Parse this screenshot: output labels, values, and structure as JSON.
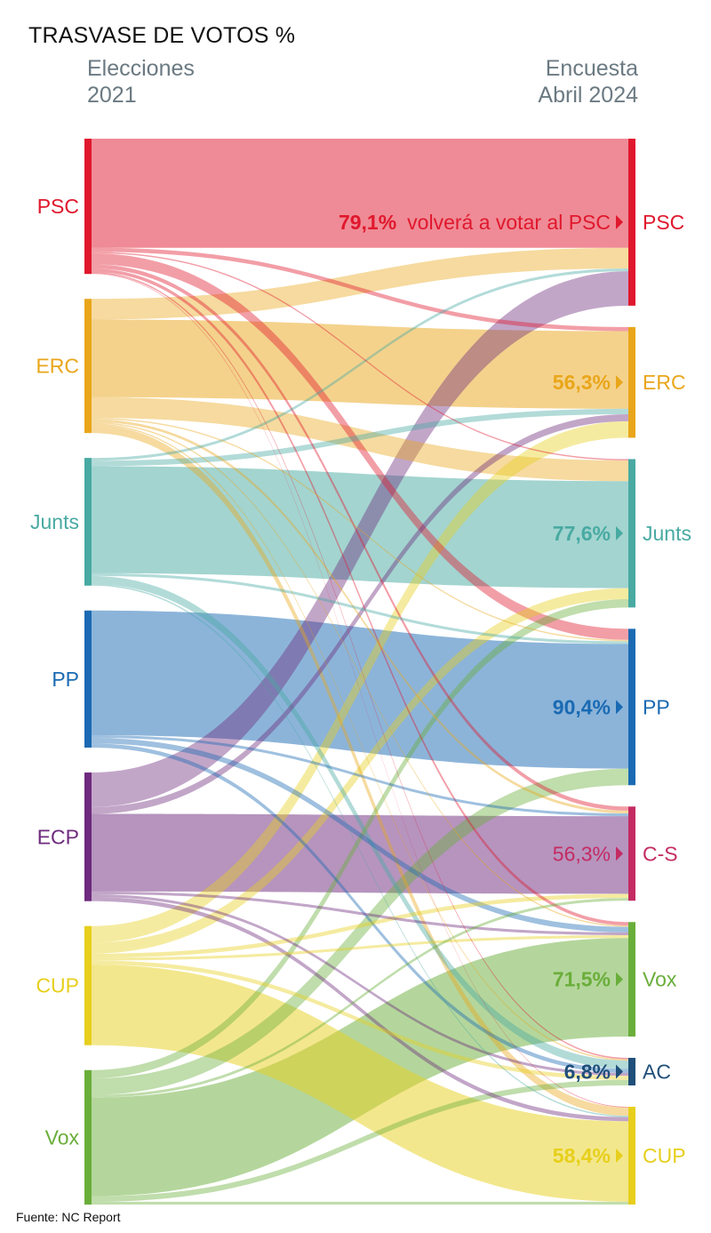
{
  "header": {
    "title": "TRASVASE DE VOTOS %",
    "left_subtitle_line1": "Elecciones",
    "left_subtitle_line2": "2021",
    "right_subtitle_line1": "Encuesta",
    "right_subtitle_line2": "Abril 2024"
  },
  "footer": {
    "source": "Fuente: NC Report"
  },
  "chart_data": {
    "type": "sankey",
    "title": "TRASVASE DE VOTOS %",
    "left_label": "Elecciones 2021",
    "right_label": "Encuesta Abril 2024",
    "left_nodes": [
      {
        "id": "PSC",
        "label": "PSC",
        "color": "#e0182d"
      },
      {
        "id": "ERC",
        "label": "ERC",
        "color": "#e9a61a"
      },
      {
        "id": "Junts",
        "label": "Junts",
        "color": "#48aaa2"
      },
      {
        "id": "PP",
        "label": "PP",
        "color": "#1a6ab3"
      },
      {
        "id": "ECP",
        "label": "ECP",
        "color": "#6e2a7d"
      },
      {
        "id": "CUP",
        "label": "CUP",
        "color": "#e7cf1c"
      },
      {
        "id": "Vox",
        "label": "Vox",
        "color": "#6aae3a"
      }
    ],
    "right_nodes": [
      {
        "id": "PSC",
        "label": "PSC",
        "color": "#e0182d",
        "retention_label": "79,1%",
        "retention_note": "volverá a votar al PSC"
      },
      {
        "id": "ERC",
        "label": "ERC",
        "color": "#e9a61a",
        "retention_label": "56,3%"
      },
      {
        "id": "Junts",
        "label": "Junts",
        "color": "#48aaa2",
        "retention_label": "77,6%"
      },
      {
        "id": "PP",
        "label": "PP",
        "color": "#1a6ab3",
        "retention_label": "90,4%"
      },
      {
        "id": "C-S",
        "label": "C-S",
        "color": "#c42b62",
        "retention_label": "56,3%"
      },
      {
        "id": "Vox",
        "label": "Vox",
        "color": "#6aae3a",
        "retention_label": "71,5%"
      },
      {
        "id": "AC",
        "label": "AC",
        "color": "#1f4f7a",
        "retention_label": "6,8%"
      },
      {
        "id": "CUP",
        "label": "CUP",
        "color": "#e7cf1c",
        "retention_label": "58,4%"
      }
    ],
    "flows": [
      {
        "from": "PSC",
        "to": "PSC",
        "value": 79.1
      },
      {
        "from": "PSC",
        "to": "ERC",
        "value": 3.0
      },
      {
        "from": "PSC",
        "to": "Junts",
        "value": 1.0
      },
      {
        "from": "PSC",
        "to": "PP",
        "value": 8.0
      },
      {
        "from": "PSC",
        "to": "C-S",
        "value": 3.0
      },
      {
        "from": "PSC",
        "to": "Vox",
        "value": 2.5
      },
      {
        "from": "PSC",
        "to": "AC",
        "value": 1.0
      },
      {
        "from": "PSC",
        "to": "CUP",
        "value": 0.5
      },
      {
        "from": "ERC",
        "to": "PSC",
        "value": 15.0
      },
      {
        "from": "ERC",
        "to": "ERC",
        "value": 56.3
      },
      {
        "from": "ERC",
        "to": "Junts",
        "value": 15.0
      },
      {
        "from": "ERC",
        "to": "PP",
        "value": 1.0
      },
      {
        "from": "ERC",
        "to": "C-S",
        "value": 2.0
      },
      {
        "from": "ERC",
        "to": "Vox",
        "value": 1.0
      },
      {
        "from": "ERC",
        "to": "AC",
        "value": 1.0
      },
      {
        "from": "ERC",
        "to": "CUP",
        "value": 6.0
      },
      {
        "from": "Junts",
        "to": "PSC",
        "value": 2.0
      },
      {
        "from": "Junts",
        "to": "ERC",
        "value": 4.0
      },
      {
        "from": "Junts",
        "to": "Junts",
        "value": 77.6
      },
      {
        "from": "Junts",
        "to": "PP",
        "value": 2.0
      },
      {
        "from": "Junts",
        "to": "AC",
        "value": 6.0
      },
      {
        "from": "Junts",
        "to": "CUP",
        "value": 1.0
      },
      {
        "from": "PP",
        "to": "PP",
        "value": 90.4
      },
      {
        "from": "PP",
        "to": "C-S",
        "value": 2.0
      },
      {
        "from": "PP",
        "to": "Vox",
        "value": 4.0
      },
      {
        "from": "PP",
        "to": "AC",
        "value": 3.0
      },
      {
        "from": "ECP",
        "to": "PSC",
        "value": 25.0
      },
      {
        "from": "ECP",
        "to": "ERC",
        "value": 5.0
      },
      {
        "from": "ECP",
        "to": "C-S",
        "value": 56.3
      },
      {
        "from": "ECP",
        "to": "Vox",
        "value": 2.0
      },
      {
        "from": "ECP",
        "to": "AC",
        "value": 2.0
      },
      {
        "from": "ECP",
        "to": "CUP",
        "value": 3.0
      },
      {
        "from": "CUP",
        "to": "ERC",
        "value": 12.0
      },
      {
        "from": "CUP",
        "to": "Junts",
        "value": 8.0
      },
      {
        "from": "CUP",
        "to": "C-S",
        "value": 3.0
      },
      {
        "from": "CUP",
        "to": "Vox",
        "value": 2.0
      },
      {
        "from": "CUP",
        "to": "AC",
        "value": 3.0
      },
      {
        "from": "CUP",
        "to": "CUP",
        "value": 58.4
      },
      {
        "from": "Vox",
        "to": "Junts",
        "value": 6.0
      },
      {
        "from": "Vox",
        "to": "PP",
        "value": 12.0
      },
      {
        "from": "Vox",
        "to": "C-S",
        "value": 2.0
      },
      {
        "from": "Vox",
        "to": "Vox",
        "value": 71.5
      },
      {
        "from": "Vox",
        "to": "AC",
        "value": 4.0
      },
      {
        "from": "Vox",
        "to": "CUP",
        "value": 2.0
      }
    ]
  }
}
